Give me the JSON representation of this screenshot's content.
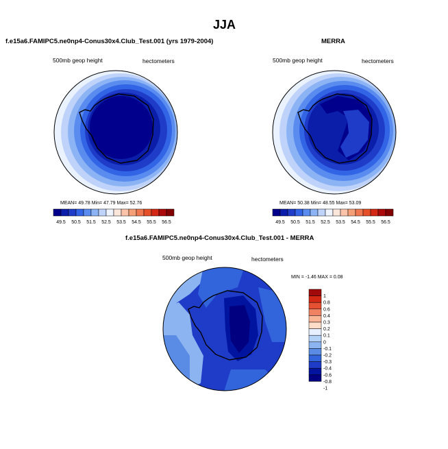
{
  "title": "JJA",
  "panels": [
    {
      "title": "f.e15a6.FAMIPC5.ne0np4-Conus30x4.Club_Test.001 (yrs 1979-2004)",
      "left_label": "500mb geop height",
      "right_label": "hectometers",
      "stats": "MEAN=  49.78  Min=  47.79  Max=  52.76",
      "colorbar_ticks": [
        "49.5",
        "50.5",
        "51.5",
        "52.5",
        "53.5",
        "54.5",
        "55.5",
        "56.5"
      ]
    },
    {
      "title": "MERRA",
      "left_label": "500mb geop height",
      "right_label": "hectometers",
      "stats": "MEAN=  50.38  Min=  48.55  Max=  53.09",
      "colorbar_ticks": [
        "49.5",
        "50.5",
        "51.5",
        "52.5",
        "53.5",
        "54.5",
        "55.5",
        "56.5"
      ]
    },
    {
      "title": "f.e15a6.FAMIPC5.ne0np4-Conus30x4.Club_Test.001 - MERRA",
      "left_label": "500mb geop height",
      "right_label": "hectometers",
      "stats": "MIN = -1.46 MAX =  0.08",
      "colorbar_ticks": [
        "1",
        "0.8",
        "0.6",
        "0.4",
        "0.3",
        "0.2",
        "0.1",
        "0",
        "-0.1",
        "-0.2",
        "-0.3",
        "-0.4",
        "-0.6",
        "-0.8",
        "-1"
      ]
    }
  ],
  "colors": {
    "abs_scale": [
      "#00008c",
      "#0a1eaa",
      "#1e3cc8",
      "#3264e6",
      "#5a8cf0",
      "#8cb4f5",
      "#bed2fa",
      "#eef3ff",
      "#fbe6dc",
      "#fac3aa",
      "#f5a078",
      "#f07850",
      "#e65028",
      "#d22814",
      "#aa0a0a",
      "#820000"
    ],
    "diff_scale": [
      "#000080",
      "#0014a0",
      "#1e3cc8",
      "#3264dc",
      "#5a8ce6",
      "#8cb4f0",
      "#b4d2f8",
      "#e6f0ff",
      "#ffdcc8",
      "#fab496",
      "#f08264",
      "#e65032",
      "#d22814",
      "#a00a0a"
    ]
  }
}
